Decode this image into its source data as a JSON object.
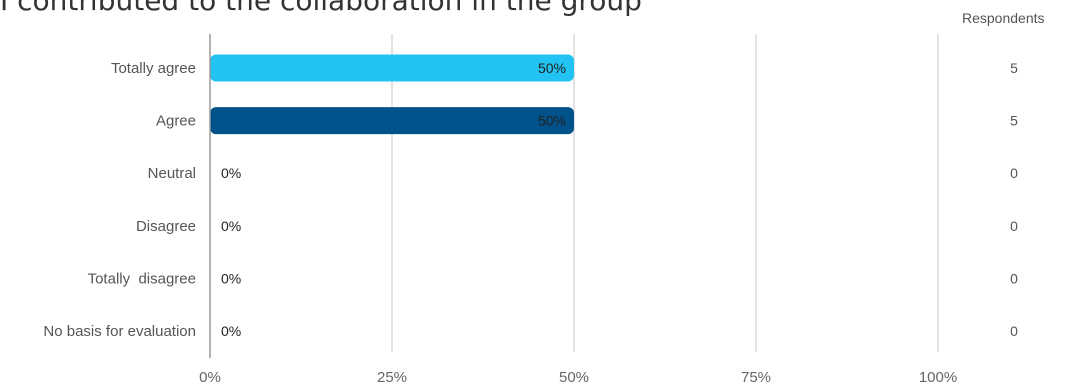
{
  "chart_data": {
    "type": "bar",
    "orientation": "horizontal",
    "title": "I contributed to the collaboration in the group",
    "categories": [
      "Totally agree",
      "Agree",
      "Neutral",
      "Disagree",
      "Totally  disagree",
      "No basis for evaluation"
    ],
    "values": [
      50,
      50,
      0,
      0,
      0,
      0
    ],
    "value_labels": [
      "50%",
      "50%",
      "0%",
      "0%",
      "0%",
      "0%"
    ],
    "bar_colors": [
      "#22C3F2",
      "#00528A",
      "#22C3F2",
      "#00528A",
      "#22C3F2",
      "#00528A"
    ],
    "xlim": [
      0,
      100
    ],
    "x_ticks": [
      0,
      25,
      50,
      75,
      100
    ],
    "x_tick_labels": [
      "0%",
      "25%",
      "50%",
      "75%",
      "100%"
    ],
    "grid": true,
    "respondents_header": "Respondents",
    "respondents": [
      "5",
      "5",
      "0",
      "0",
      "0",
      "0"
    ]
  }
}
